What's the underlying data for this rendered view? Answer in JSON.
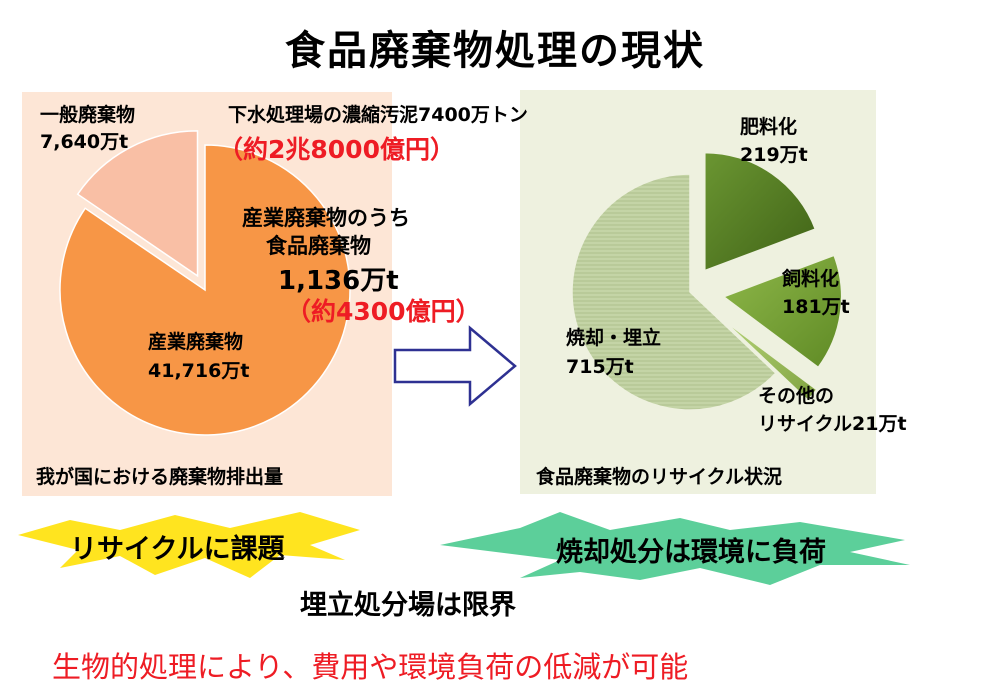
{
  "title": "食品廃棄物処理の現状",
  "left_pie": {
    "caption": "我が国における廃棄物排出量",
    "general": {
      "name": "一般廃棄物",
      "amount": "7,640万t",
      "value": 7640,
      "color": "#f9bfa5"
    },
    "industrial": {
      "name": "産業廃棄物",
      "amount": "41,716万t",
      "value": 41716,
      "color": "#f79646"
    },
    "sewage_note": "下水処理場の濃縮汚泥7400万トン",
    "sewage_cost": "（約2兆8000億円）",
    "food_note_line1": "産業廃棄物のうち",
    "food_note_line2": "食品廃棄物",
    "food_amount": "1,136万t",
    "food_cost": "（約4300億円）"
  },
  "right_pie": {
    "caption": "食品廃棄物のリサイクル状況",
    "slices": [
      {
        "name": "焼却・埋立",
        "amount": "715万t",
        "value": 715,
        "color": "#c4d4a6"
      },
      {
        "name": "肥料化",
        "amount": "219万t",
        "value": 219,
        "color": "#5a8227"
      },
      {
        "name": "飼料化",
        "amount": "181万t",
        "value": 181,
        "color": "#79a33a"
      },
      {
        "name_line1": "その他の",
        "name_line2": "リサイクル21万t",
        "value": 21,
        "color": "#9bbf5c"
      }
    ]
  },
  "bursts": {
    "left": {
      "text": "リサイクルに課題",
      "color": "#ffe41f"
    },
    "right": {
      "text": "焼却処分は環境に負荷",
      "color": "#5ccf9a"
    },
    "middle_text": "埋立処分場は限界"
  },
  "conclusion": "生物的処理により、費用や環境負荷の低減が可能",
  "colors": {
    "arrow_stroke": "#2e3192",
    "red_text": "#ee1c24"
  }
}
